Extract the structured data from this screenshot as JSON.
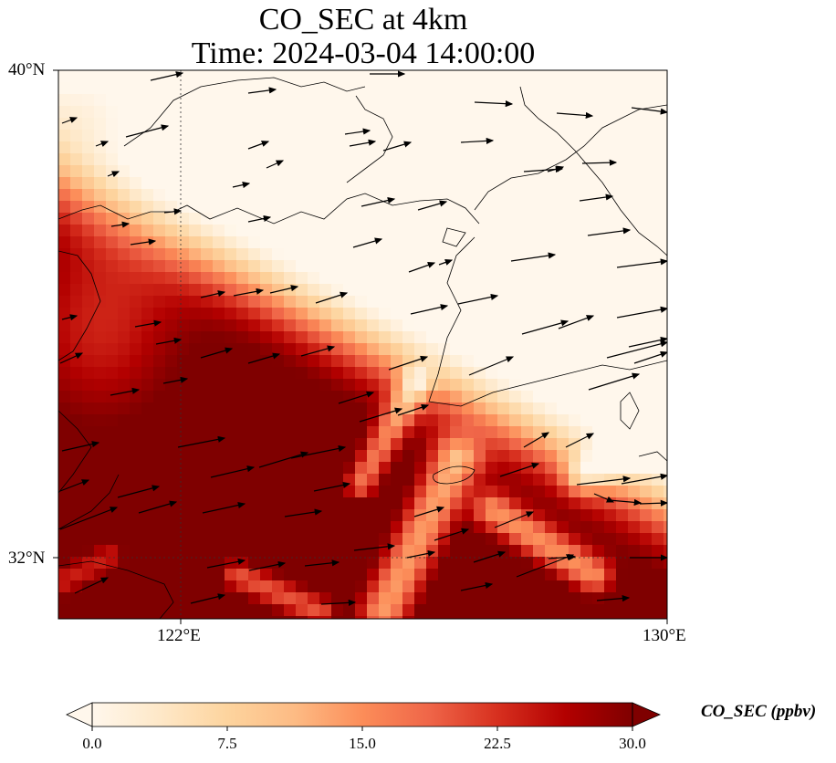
{
  "title": {
    "line1": "CO_SEC at 4km",
    "line2": "Time: 2024-03-04 14:00:00"
  },
  "map": {
    "variable": "CO_SEC",
    "height": "4km",
    "time": "2024-03-04 14:00:00",
    "lon_range": [
      119.5,
      130
    ],
    "lat_range": [
      31,
      40
    ],
    "gridlines": {
      "lon": [
        {
          "value": 122,
          "label": "122°E"
        },
        {
          "value": 130,
          "label": "130°E"
        }
      ],
      "lat": [
        {
          "value": 40,
          "label": "40°N"
        },
        {
          "value": 32,
          "label": "32°N"
        }
      ]
    },
    "wind_vectors": "shown (arrows, predominantly westerly / west-southwesterly)",
    "field_description_regions": [
      {
        "region": "Yellow Sea / Korean Peninsula / Kyushu approaches",
        "level": "high (~25-30 ppbv)"
      },
      {
        "region": "North (Bohai / Liaoning / North Korea)",
        "level": "low (~0-10 ppbv)"
      },
      {
        "region": "Shandong peninsula diagonal band",
        "level": "low-moderate (~5-12 ppbv)"
      }
    ]
  },
  "colorbar": {
    "label": "CO_SEC (ppbv)",
    "colormap": "OrRd",
    "min": 0.0,
    "max": 30.0,
    "ticks": [
      "0.0",
      "7.5",
      "15.0",
      "22.5",
      "30.0"
    ],
    "extend": "both",
    "colors": [
      "#fff7ec",
      "#fee8c8",
      "#fdd49e",
      "#fdbb84",
      "#fc8d59",
      "#ef6548",
      "#d7301f",
      "#b30000",
      "#7f0000"
    ]
  }
}
